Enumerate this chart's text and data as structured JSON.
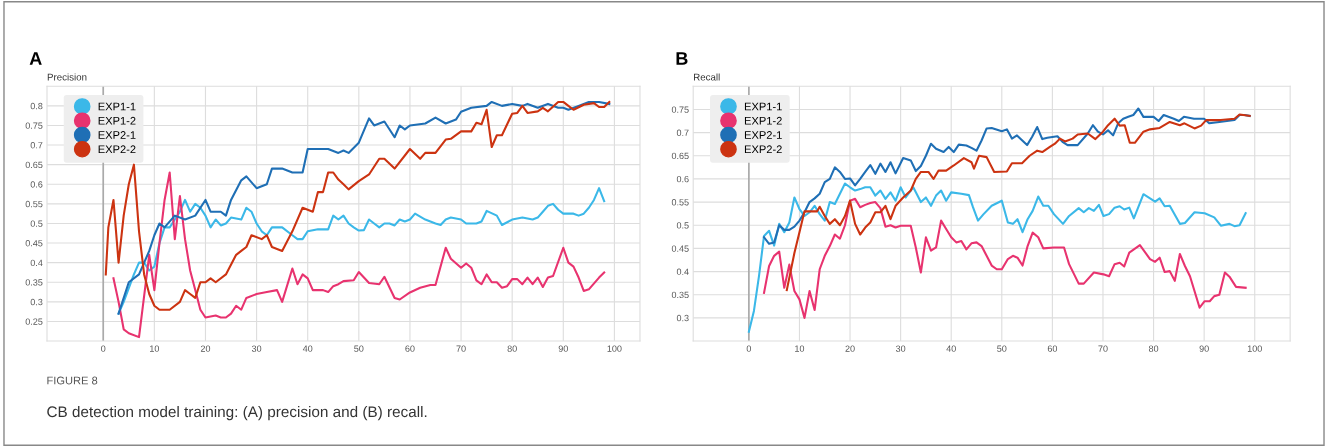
{
  "chart_data": [
    {
      "type": "line",
      "title": "A",
      "ylabel": "Precision",
      "xlim": [
        -11,
        105
      ],
      "ylim": [
        0.2,
        0.85
      ],
      "xticks": [
        0,
        10,
        20,
        30,
        40,
        50,
        60,
        70,
        80,
        90,
        100
      ],
      "yticks": [
        0.25,
        0.3,
        0.35,
        0.4,
        0.45,
        0.5,
        0.55,
        0.6,
        0.65,
        0.7,
        0.75,
        0.8
      ],
      "grid": true,
      "legend": "top left",
      "marker": "none",
      "line_style": "solid",
      "ref_lines": [
        {
          "axis": "x",
          "value": 0,
          "color": "#aaaaaa"
        }
      ],
      "annotations": [
        "FIGURE 8",
        "CB detection model training: (A) precision and (B) recall."
      ],
      "series": [
        {
          "name": "EXP1-1",
          "color": "#3bb8e8",
          "x": [
            3,
            4,
            6,
            7,
            8,
            9,
            10,
            11,
            12,
            13,
            14,
            15,
            16,
            17,
            18,
            19,
            20,
            21,
            22,
            23,
            24,
            25,
            27,
            28,
            29,
            30,
            31,
            32,
            33,
            35,
            37,
            38,
            39,
            40,
            42,
            44,
            45,
            46,
            47,
            48,
            49,
            50,
            51,
            52,
            53,
            54,
            55,
            56,
            57,
            58,
            59,
            60,
            61,
            63,
            65,
            66,
            67,
            68,
            70,
            71,
            73,
            74,
            75,
            77,
            78,
            80,
            82,
            84,
            85,
            86,
            87,
            88,
            89,
            90,
            92,
            93,
            94,
            95,
            96,
            97,
            98
          ],
          "values": [
            0.27,
            0.3,
            0.37,
            0.4,
            0.4,
            0.38,
            0.39,
            0.45,
            0.49,
            0.49,
            0.51,
            0.53,
            0.56,
            0.53,
            0.55,
            0.54,
            0.52,
            0.49,
            0.51,
            0.495,
            0.5,
            0.515,
            0.51,
            0.54,
            0.53,
            0.5,
            0.48,
            0.47,
            0.49,
            0.49,
            0.47,
            0.46,
            0.46,
            0.48,
            0.485,
            0.485,
            0.52,
            0.51,
            0.52,
            0.5,
            0.49,
            0.482,
            0.483,
            0.51,
            0.5,
            0.49,
            0.5,
            0.5,
            0.495,
            0.51,
            0.505,
            0.51,
            0.525,
            0.51,
            0.5,
            0.496,
            0.51,
            0.515,
            0.51,
            0.5,
            0.5,
            0.505,
            0.532,
            0.52,
            0.496,
            0.51,
            0.515,
            0.51,
            0.515,
            0.53,
            0.545,
            0.55,
            0.535,
            0.525,
            0.525,
            0.52,
            0.525,
            0.54,
            0.56,
            0.59,
            0.557
          ]
        },
        {
          "name": "EXP1-2",
          "color": "#e8336f",
          "x": [
            2,
            3,
            4,
            5,
            7,
            9,
            10,
            11,
            12,
            13,
            14,
            15,
            16,
            17,
            18,
            19,
            20,
            22,
            23,
            24,
            25,
            26,
            27,
            28,
            30,
            32,
            34,
            35,
            37,
            38,
            39,
            40,
            41,
            43,
            44,
            45,
            46,
            47,
            49,
            50,
            52,
            54,
            55,
            57,
            58,
            60,
            62,
            64,
            65,
            67,
            68,
            70,
            71,
            72,
            73,
            74,
            75,
            76,
            77,
            78,
            79,
            80,
            81,
            82,
            83,
            84,
            85,
            86,
            87,
            88,
            90,
            91,
            92,
            93,
            94,
            95,
            97,
            98
          ],
          "values": [
            0.36,
            0.3,
            0.23,
            0.22,
            0.21,
            0.42,
            0.33,
            0.45,
            0.56,
            0.63,
            0.46,
            0.57,
            0.46,
            0.38,
            0.33,
            0.28,
            0.26,
            0.265,
            0.26,
            0.26,
            0.27,
            0.29,
            0.28,
            0.31,
            0.32,
            0.325,
            0.33,
            0.3,
            0.385,
            0.345,
            0.37,
            0.36,
            0.33,
            0.33,
            0.325,
            0.34,
            0.345,
            0.353,
            0.355,
            0.376,
            0.348,
            0.345,
            0.364,
            0.31,
            0.306,
            0.324,
            0.336,
            0.343,
            0.343,
            0.438,
            0.41,
            0.387,
            0.398,
            0.387,
            0.355,
            0.345,
            0.37,
            0.35,
            0.35,
            0.336,
            0.34,
            0.358,
            0.358,
            0.345,
            0.362,
            0.345,
            0.362,
            0.338,
            0.362,
            0.366,
            0.438,
            0.4,
            0.39,
            0.362,
            0.328,
            0.332,
            0.362,
            0.375
          ]
        },
        {
          "name": "EXP2-1",
          "color": "#1f6fb5",
          "x": [
            3,
            5,
            7,
            9,
            10,
            11,
            12,
            14,
            16,
            18,
            20,
            21,
            23,
            24,
            25,
            27,
            28,
            30,
            32,
            33,
            35,
            37,
            39,
            40,
            42,
            44,
            46,
            47,
            48,
            50,
            52,
            53,
            55,
            57,
            58,
            59,
            60,
            63,
            65,
            67,
            69,
            70,
            72,
            75,
            76,
            78,
            80,
            82,
            83,
            85,
            87,
            89,
            90,
            91,
            93,
            95,
            97,
            99
          ],
          "values": [
            0.27,
            0.35,
            0.37,
            0.43,
            0.47,
            0.5,
            0.49,
            0.52,
            0.51,
            0.52,
            0.56,
            0.53,
            0.53,
            0.52,
            0.56,
            0.61,
            0.62,
            0.59,
            0.6,
            0.64,
            0.64,
            0.63,
            0.63,
            0.69,
            0.69,
            0.69,
            0.68,
            0.686,
            0.68,
            0.706,
            0.768,
            0.75,
            0.76,
            0.72,
            0.75,
            0.74,
            0.75,
            0.755,
            0.77,
            0.755,
            0.765,
            0.785,
            0.795,
            0.8,
            0.81,
            0.8,
            0.805,
            0.8,
            0.805,
            0.795,
            0.805,
            0.795,
            0.795,
            0.79,
            0.8,
            0.81,
            0.81,
            0.805
          ]
        },
        {
          "name": "EXP2-2",
          "color": "#cc3311",
          "x": [
            0.5,
            1,
            2,
            3,
            4,
            5,
            6,
            7,
            8,
            9,
            10,
            11,
            13,
            15,
            16,
            17,
            18,
            19,
            20,
            21,
            22,
            24,
            26,
            27,
            28,
            29,
            31,
            32,
            33,
            35,
            37,
            39,
            41,
            42,
            43,
            44,
            45,
            46,
            47,
            48,
            50,
            52,
            54,
            55,
            57,
            60,
            62,
            63,
            65,
            67,
            68,
            70,
            72,
            73,
            74,
            75,
            76,
            77,
            78,
            80,
            81,
            82,
            83,
            85,
            86,
            87,
            89,
            90,
            91,
            92,
            94,
            96,
            97,
            98,
            99
          ],
          "values": [
            0.37,
            0.49,
            0.56,
            0.4,
            0.52,
            0.6,
            0.65,
            0.48,
            0.37,
            0.32,
            0.29,
            0.28,
            0.28,
            0.3,
            0.33,
            0.32,
            0.31,
            0.35,
            0.35,
            0.36,
            0.35,
            0.37,
            0.42,
            0.43,
            0.44,
            0.47,
            0.46,
            0.47,
            0.44,
            0.43,
            0.48,
            0.54,
            0.53,
            0.58,
            0.58,
            0.63,
            0.63,
            0.612,
            0.6,
            0.587,
            0.608,
            0.625,
            0.665,
            0.665,
            0.64,
            0.69,
            0.665,
            0.68,
            0.68,
            0.714,
            0.716,
            0.735,
            0.735,
            0.757,
            0.753,
            0.79,
            0.695,
            0.725,
            0.725,
            0.78,
            0.782,
            0.8,
            0.782,
            0.786,
            0.795,
            0.786,
            0.81,
            0.81,
            0.8,
            0.79,
            0.803,
            0.807,
            0.797,
            0.797,
            0.81
          ]
        }
      ]
    },
    {
      "type": "line",
      "title": "B",
      "ylabel": "Recall",
      "xlim": [
        -11,
        107
      ],
      "ylim": [
        0.25,
        0.8
      ],
      "xticks": [
        0,
        10,
        20,
        30,
        40,
        50,
        60,
        70,
        80,
        90,
        100
      ],
      "yticks": [
        0.3,
        0.35,
        0.4,
        0.45,
        0.5,
        0.55,
        0.6,
        0.65,
        0.7,
        0.75
      ],
      "grid": true,
      "legend": "top left",
      "marker": "none",
      "line_style": "solid",
      "ref_lines": [
        {
          "axis": "x",
          "value": 0,
          "color": "#aaaaaa"
        }
      ],
      "series": [
        {
          "name": "EXP1-1",
          "color": "#3bb8e8",
          "x": [
            0,
            1,
            2,
            3,
            4,
            5,
            6,
            7,
            8,
            9,
            10,
            11,
            12,
            13,
            14,
            15,
            16,
            17,
            18,
            19,
            20,
            21,
            22,
            23,
            24,
            25,
            26,
            27,
            28,
            29,
            30,
            31,
            32.5,
            34,
            35,
            36,
            37,
            38,
            39,
            40,
            42,
            43.5,
            44.3,
            45.3,
            46.4,
            48,
            50,
            51.2,
            52.2,
            53.1,
            54.1,
            55.1,
            56.1,
            57.2,
            58.2,
            59.2,
            60.3,
            62.1,
            63.3,
            65.2,
            66.2,
            67.2,
            68.2,
            69.2,
            70.1,
            71.2,
            72.3,
            73.3,
            74.2,
            75.2,
            76.1,
            78,
            79.3,
            80.3,
            81.2,
            82.2,
            83.2,
            85.2,
            86.2,
            88.1,
            90.1,
            92,
            93.3,
            95,
            96,
            97,
            98.2
          ],
          "values": [
            0.27,
            0.315,
            0.39,
            0.477,
            0.488,
            0.456,
            0.503,
            0.485,
            0.506,
            0.56,
            0.535,
            0.52,
            0.528,
            0.542,
            0.524,
            0.51,
            0.55,
            0.546,
            0.568,
            0.59,
            0.582,
            0.575,
            0.578,
            0.582,
            0.582,
            0.564,
            0.575,
            0.557,
            0.571,
            0.553,
            0.582,
            0.56,
            0.582,
            0.55,
            0.56,
            0.542,
            0.564,
            0.575,
            0.553,
            0.571,
            0.568,
            0.565,
            0.539,
            0.51,
            0.524,
            0.542,
            0.553,
            0.506,
            0.503,
            0.513,
            0.485,
            0.513,
            0.531,
            0.562,
            0.542,
            0.542,
            0.524,
            0.503,
            0.52,
            0.537,
            0.528,
            0.537,
            0.531,
            0.544,
            0.52,
            0.524,
            0.538,
            0.541,
            0.534,
            0.538,
            0.515,
            0.567,
            0.558,
            0.551,
            0.558,
            0.541,
            0.542,
            0.503,
            0.505,
            0.528,
            0.526,
            0.517,
            0.499,
            0.503,
            0.498,
            0.5,
            0.526
          ]
        },
        {
          "name": "EXP1-2",
          "color": "#e8336f",
          "x": [
            3,
            4,
            5,
            6,
            7,
            8,
            9,
            10,
            11,
            12,
            13,
            14,
            15,
            16,
            17,
            18,
            19,
            20,
            21,
            22,
            23,
            24,
            25,
            26,
            27,
            28,
            29,
            30,
            32,
            33,
            34,
            35,
            36,
            37,
            38,
            39,
            40,
            41,
            42,
            43,
            44,
            45,
            46,
            47,
            48,
            49,
            50,
            51.2,
            52.2,
            53.1,
            54.1,
            55.1,
            56.1,
            57.2,
            58.2,
            60.3,
            62.3,
            63.3,
            65.2,
            66.2,
            68.2,
            70.1,
            71.2,
            72.3,
            73.3,
            74.2,
            75.2,
            77.3,
            79.3,
            80.3,
            81.2,
            82.2,
            83.2,
            84.2,
            85.2,
            86.2,
            87.2,
            89.1,
            90.1,
            91.1,
            92,
            93,
            94.1,
            95,
            96.3,
            98.2
          ],
          "values": [
            0.354,
            0.412,
            0.434,
            0.443,
            0.365,
            0.415,
            0.358,
            0.34,
            0.3,
            0.358,
            0.317,
            0.405,
            0.434,
            0.455,
            0.48,
            0.471,
            0.5,
            0.553,
            0.557,
            0.539,
            0.544,
            0.548,
            0.55,
            0.537,
            0.497,
            0.5,
            0.495,
            0.499,
            0.499,
            0.452,
            0.398,
            0.474,
            0.445,
            0.452,
            0.51,
            0.492,
            0.474,
            0.463,
            0.466,
            0.448,
            0.461,
            0.463,
            0.455,
            0.434,
            0.413,
            0.405,
            0.405,
            0.427,
            0.434,
            0.43,
            0.413,
            0.455,
            0.484,
            0.474,
            0.45,
            0.452,
            0.452,
            0.416,
            0.374,
            0.374,
            0.398,
            0.394,
            0.39,
            0.416,
            0.419,
            0.411,
            0.441,
            0.457,
            0.427,
            0.421,
            0.43,
            0.399,
            0.401,
            0.38,
            0.438,
            0.412,
            0.39,
            0.322,
            0.336,
            0.336,
            0.347,
            0.35,
            0.398,
            0.389,
            0.367,
            0.365
          ]
        },
        {
          "name": "EXP2-1",
          "color": "#1f6fb5",
          "x": [
            3,
            4,
            5,
            6,
            7,
            8,
            9,
            10,
            11,
            12,
            13,
            14,
            15,
            16,
            17,
            18,
            19,
            20,
            21,
            22,
            23,
            24,
            25,
            26,
            27,
            28,
            29,
            30.5,
            32,
            33,
            34,
            35,
            36,
            37,
            38.5,
            39.5,
            40.5,
            41.5,
            43,
            44,
            45,
            46,
            47,
            48,
            50,
            51,
            52,
            53,
            55,
            56,
            57,
            58,
            59,
            61,
            62,
            63,
            65,
            67,
            68,
            69,
            70,
            71,
            72,
            73,
            74,
            75,
            76,
            77,
            78,
            80,
            81,
            82,
            84,
            85,
            86,
            88,
            90,
            91,
            93,
            96,
            97,
            98,
            99
          ],
          "values": [
            0.474,
            0.46,
            0.463,
            0.5,
            0.49,
            0.49,
            0.497,
            0.51,
            0.528,
            0.55,
            0.558,
            0.568,
            0.593,
            0.6,
            0.625,
            0.615,
            0.6,
            0.601,
            0.586,
            0.6,
            0.615,
            0.63,
            0.611,
            0.633,
            0.615,
            0.636,
            0.612,
            0.645,
            0.64,
            0.617,
            0.628,
            0.65,
            0.676,
            0.665,
            0.658,
            0.669,
            0.658,
            0.674,
            0.672,
            0.667,
            0.661,
            0.683,
            0.709,
            0.71,
            0.703,
            0.707,
            0.687,
            0.694,
            0.673,
            0.691,
            0.712,
            0.686,
            0.689,
            0.692,
            0.68,
            0.673,
            0.673,
            0.698,
            0.716,
            0.702,
            0.696,
            0.705,
            0.694,
            0.72,
            0.73,
            0.734,
            0.738,
            0.752,
            0.734,
            0.734,
            0.725,
            0.738,
            0.73,
            0.725,
            0.734,
            0.73,
            0.73,
            0.72,
            0.723,
            0.727,
            0.738,
            0.738,
            0.736
          ]
        },
        {
          "name": "EXP2-2",
          "color": "#cc3311",
          "x": [
            7.5,
            9,
            10,
            11,
            12,
            13.5,
            14,
            15,
            16,
            17,
            18,
            19,
            20,
            21,
            22,
            23,
            24,
            25,
            26,
            27,
            28,
            29,
            30.5,
            32,
            33,
            34,
            35.5,
            36.5,
            37.5,
            39,
            40.5,
            42.5,
            44,
            44.5,
            45.5,
            47,
            48.5,
            51,
            52,
            54,
            55.5,
            57,
            58,
            59.5,
            60.5,
            61.5,
            62.5,
            64,
            65,
            67,
            68.5,
            70,
            71,
            72.3,
            73.3,
            74.3,
            75.3,
            76.3,
            78,
            79.3,
            81.2,
            83.2,
            85.2,
            86.1,
            88.1,
            89.4,
            90.4,
            93.3,
            96,
            97,
            99
          ],
          "values": [
            0.36,
            0.44,
            0.485,
            0.53,
            0.53,
            0.53,
            0.54,
            0.52,
            0.503,
            0.513,
            0.5,
            0.52,
            0.553,
            0.503,
            0.48,
            0.495,
            0.506,
            0.528,
            0.528,
            0.542,
            0.513,
            0.542,
            0.56,
            0.575,
            0.6,
            0.615,
            0.615,
            0.6,
            0.618,
            0.618,
            0.629,
            0.645,
            0.636,
            0.622,
            0.65,
            0.647,
            0.615,
            0.616,
            0.634,
            0.634,
            0.65,
            0.661,
            0.658,
            0.669,
            0.676,
            0.687,
            0.681,
            0.687,
            0.696,
            0.698,
            0.686,
            0.702,
            0.716,
            0.73,
            0.715,
            0.716,
            0.678,
            0.678,
            0.702,
            0.707,
            0.71,
            0.723,
            0.716,
            0.72,
            0.709,
            0.715,
            0.727,
            0.727,
            0.73,
            0.739,
            0.736
          ]
        }
      ]
    }
  ]
}
